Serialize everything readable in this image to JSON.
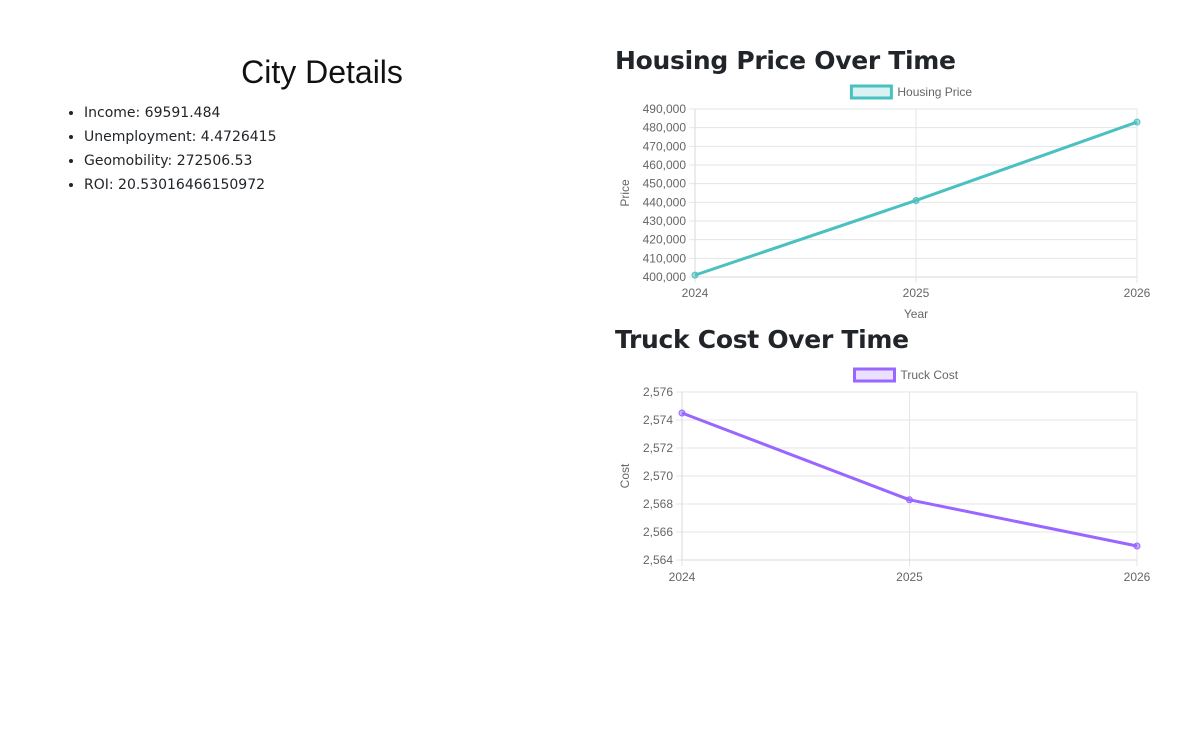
{
  "city": {
    "title": "City Details",
    "stats": [
      "Income: 69591.484",
      "Unemployment: 4.4726415",
      "Geomobility: 272506.53",
      "ROI: 20.53016466150972"
    ]
  },
  "charts": {
    "housing": {
      "heading": "Housing Price Over Time"
    },
    "truck": {
      "heading": "Truck Cost Over Time"
    }
  },
  "chart_data": [
    {
      "type": "line",
      "title": "Housing Price Over Time",
      "x": [
        "2024",
        "2025",
        "2026"
      ],
      "series": [
        {
          "name": "Housing Price",
          "values": [
            401000,
            441000,
            483000
          ],
          "color": "#4bc0c0"
        }
      ],
      "xlabel": "Year",
      "ylabel": "Price",
      "ylim": [
        400000,
        490000
      ],
      "yticks": [
        "490,000",
        "480,000",
        "470,000",
        "460,000",
        "450,000",
        "440,000",
        "430,000",
        "420,000",
        "410,000",
        "400,000"
      ],
      "grid": true,
      "legend": "top"
    },
    {
      "type": "line",
      "title": "Truck Cost Over Time",
      "x": [
        "2024",
        "2025",
        "2026"
      ],
      "series": [
        {
          "name": "Truck Cost",
          "values": [
            2574.5,
            2568.3,
            2565.0
          ],
          "color": "#9966ff"
        }
      ],
      "xlabel": "",
      "ylabel": "Cost",
      "ylim": [
        2564,
        2576
      ],
      "yticks": [
        "2,576",
        "2,574",
        "2,572",
        "2,570",
        "2,568",
        "2,566",
        "2,564"
      ],
      "grid": true,
      "legend": "top"
    }
  ]
}
